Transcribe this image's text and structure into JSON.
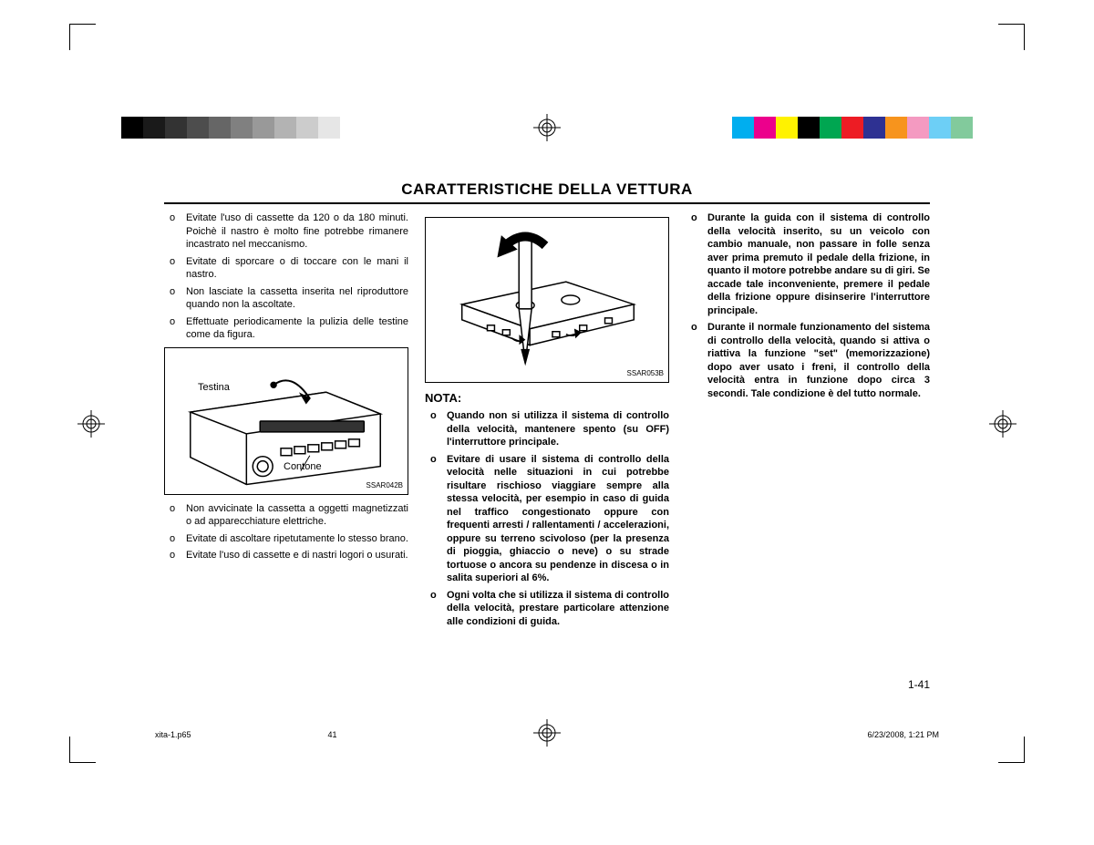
{
  "colorbar_left": [
    "#000000",
    "#1a1a1a",
    "#333333",
    "#4d4d4d",
    "#666666",
    "#808080",
    "#999999",
    "#b3b3b3",
    "#cccccc",
    "#e6e6e6",
    "#ffffff"
  ],
  "colorbar_right": [
    "#00aeef",
    "#ec008c",
    "#fff200",
    "#000000",
    "#00a651",
    "#ed1c24",
    "#2e3192",
    "#f7941d",
    "#f49ac1",
    "#6dcff6",
    "#82ca9c"
  ],
  "title": "CARATTERISTICHE DELLA VETTURA",
  "col1": {
    "items_top": [
      "Evitate l'uso di cassette da 120 o da 180 minuti. Poichè il nastro è molto fine potrebbe rimanere incastrato nel meccanismo.",
      "Evitate di sporcare o di toccare con le mani il nastro.",
      "Non lasciate la cassetta inserita nel riproduttore quando non la ascoltate.",
      "Effettuate periodicamente la pulizia delle testine come da figura."
    ],
    "fig1_label_testina": "Testina",
    "fig1_label_contone": "Contone",
    "fig1_code": "SSAR042B",
    "items_bottom": [
      "Non avvicinate la cassetta a oggetti magnetizzati o ad apparecchiature elettriche.",
      "Evitate di ascoltare ripetutamente lo stesso brano.",
      "Evitate l'uso di cassette e di nastri logori o usurati."
    ]
  },
  "col2": {
    "fig2_code": "SSAR053B",
    "nota_heading": "NOTA:",
    "nota_items": [
      "Quando non si utilizza il sistema di controllo della velocità, mantenere spento (su OFF) l'interruttore principale.",
      "Evitare di usare il sistema di controllo della velocità nelle situazioni in cui potrebbe risultare rischioso viaggiare sempre alla stessa velocità, per esempio in caso di guida nel traffico congestionato oppure con frequenti arresti / rallentamenti / accelerazioni, oppure su terreno scivoloso (per la presenza di pioggia, ghiaccio o neve) o su strade tortuose o ancora su pendenze in discesa o in salita superiori al 6%.",
      "Ogni volta che si utilizza il sistema di controllo della velocità, prestare particolare attenzione alle condizioni di guida."
    ]
  },
  "col3": {
    "items": [
      "Durante la guida con il sistema di controllo della velocità inserito, su un veicolo con cambio manuale, non passare in folle senza aver prima premuto il pedale della frizione, in quanto il motore potrebbe andare su di giri. Se accade tale inconveniente, premere il pedale della frizione oppure disinserire l'interruttore principale.",
      "Durante il normale funzionamento del sistema di controllo della velocità, quando si attiva o riattiva la funzione \"set\" (memorizzazione) dopo aver usato i freni, il controllo della velocità entra in funzione dopo circa 3 secondi. Tale condizione è del tutto normale."
    ]
  },
  "page_number": "1-41",
  "footer": {
    "file": "xita-1.p65",
    "page": "41",
    "date": "6/23/2008, 1:21 PM"
  }
}
